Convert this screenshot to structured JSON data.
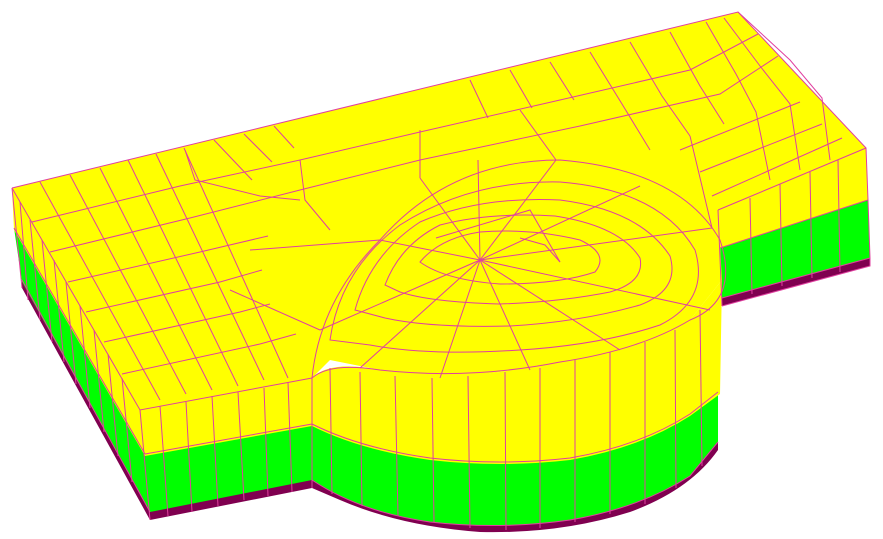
{
  "diagram": {
    "type": "3d-finite-element-mesh",
    "view": "isometric",
    "colors": {
      "background": "#ffffff",
      "top_face": "#ffff00",
      "upper_side_layer": "#ffff00",
      "middle_layer": "#00ff00",
      "bottom_layer": "#800050",
      "mesh_lines": "#e040a0"
    },
    "layers": [
      "top-face",
      "yellow-layer",
      "green-layer",
      "maroon-base"
    ]
  }
}
